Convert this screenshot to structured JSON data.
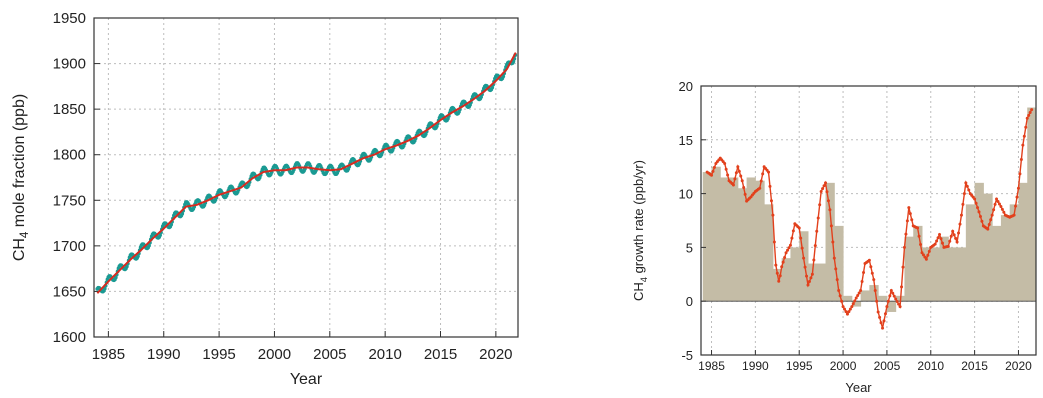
{
  "chart_data": [
    {
      "type": "line",
      "xlabel": "Year",
      "ylabel_main": "CH",
      "ylabel_sub": "4",
      "ylabel_rest": " mole fraction (ppb)",
      "xlim": [
        1983.7,
        2022.0
      ],
      "ylim": [
        1600,
        1950
      ],
      "x_ticks": [
        1985,
        1990,
        1995,
        2000,
        2005,
        2010,
        2015,
        2020
      ],
      "y_ticks": [
        1600,
        1650,
        1700,
        1750,
        1800,
        1850,
        1900,
        1950
      ],
      "grid": true,
      "colors": {
        "monthly": "#1a9a93",
        "trend": "#d62b20"
      },
      "series": [
        {
          "style": "monthly-points",
          "seasonal_amplitude": 5,
          "x": [
            1984,
            1985,
            1986,
            1987,
            1988,
            1989,
            1990,
            1991,
            1992,
            1993,
            1994,
            1995,
            1996,
            1997,
            1998,
            1999,
            2000,
            2001,
            2002,
            2003,
            2004,
            2005,
            2006,
            2007,
            2008,
            2009,
            2010,
            2011,
            2012,
            2013,
            2014,
            2015,
            2016,
            2017,
            2018,
            2019,
            2020,
            2021,
            2021.8
          ],
          "y": [
            1648,
            1661,
            1673,
            1685,
            1696,
            1708,
            1719,
            1731,
            1743,
            1745,
            1750,
            1756,
            1760,
            1764,
            1774,
            1781,
            1783,
            1783,
            1786,
            1786,
            1784,
            1783,
            1784,
            1790,
            1796,
            1800,
            1806,
            1810,
            1815,
            1821,
            1829,
            1838,
            1846,
            1853,
            1861,
            1870,
            1881,
            1894,
            1912
          ]
        },
        {
          "style": "trend-line",
          "x": [
            1984,
            1985,
            1986,
            1987,
            1988,
            1989,
            1990,
            1991,
            1992,
            1993,
            1994,
            1995,
            1996,
            1997,
            1998,
            1999,
            2000,
            2001,
            2002,
            2003,
            2004,
            2005,
            2006,
            2007,
            2008,
            2009,
            2010,
            2011,
            2012,
            2013,
            2014,
            2015,
            2016,
            2017,
            2018,
            2019,
            2020,
            2021,
            2021.8
          ],
          "y": [
            1648,
            1661,
            1673,
            1685,
            1696,
            1708,
            1719,
            1731,
            1743,
            1745,
            1750,
            1756,
            1760,
            1764,
            1774,
            1781,
            1783,
            1783,
            1786,
            1786,
            1784,
            1783,
            1784,
            1790,
            1796,
            1800,
            1806,
            1810,
            1815,
            1821,
            1829,
            1838,
            1846,
            1853,
            1861,
            1870,
            1881,
            1894,
            1912
          ]
        }
      ]
    },
    {
      "type": "bar",
      "xlabel": "Year",
      "ylabel_main": "CH",
      "ylabel_sub": "4",
      "ylabel_rest": " growth rate (ppb/yr)",
      "xlim": [
        1983.8,
        2022.0
      ],
      "ylim": [
        -5,
        20
      ],
      "x_ticks": [
        1985,
        1990,
        1995,
        2000,
        2005,
        2010,
        2015,
        2020
      ],
      "y_ticks": [
        -5,
        0,
        5,
        10,
        15,
        20
      ],
      "grid": true,
      "colors": {
        "bars": "#c4bca6",
        "line": "#e2401c"
      },
      "annual_bars": {
        "years": [
          1984,
          1985,
          1986,
          1987,
          1988,
          1989,
          1990,
          1991,
          1992,
          1993,
          1994,
          1995,
          1996,
          1997,
          1998,
          1999,
          2000,
          2001,
          2002,
          2003,
          2004,
          2005,
          2006,
          2007,
          2008,
          2009,
          2010,
          2011,
          2012,
          2013,
          2014,
          2015,
          2016,
          2017,
          2018,
          2019,
          2020,
          2021
        ],
        "values": [
          12,
          12.5,
          11.5,
          11.5,
          10.5,
          11.5,
          11.2,
          9,
          3,
          4,
          5,
          6.5,
          3.5,
          3.5,
          11,
          7,
          0.5,
          -0.5,
          1,
          1.5,
          0.5,
          -1,
          0.5,
          6,
          7,
          5,
          5,
          6,
          5,
          5,
          9,
          11,
          10,
          7,
          8,
          9,
          11,
          18
        ]
      },
      "smoothed_rate": {
        "x": [
          1984.5,
          1985,
          1985.5,
          1986,
          1986.5,
          1987,
          1987.5,
          1988,
          1988.5,
          1989,
          1989.5,
          1990,
          1990.5,
          1991,
          1991.5,
          1992,
          1992.3,
          1992.7,
          1993,
          1993.5,
          1994,
          1994.5,
          1995,
          1995.5,
          1996,
          1996.5,
          1997,
          1997.5,
          1998,
          1998.5,
          1999,
          1999.5,
          2000,
          2000.5,
          2001,
          2001.5,
          2002,
          2002.5,
          2003,
          2003.5,
          2004,
          2004.5,
          2005,
          2005.5,
          2006,
          2006.5,
          2007,
          2007.5,
          2008,
          2008.5,
          2009,
          2009.5,
          2010,
          2010.5,
          2011,
          2011.5,
          2012,
          2012.5,
          2013,
          2013.5,
          2014,
          2014.5,
          2015,
          2015.5,
          2016,
          2016.5,
          2017,
          2017.5,
          2018,
          2018.5,
          2019,
          2019.5,
          2020,
          2020.5,
          2021,
          2021.5
        ],
        "y": [
          12,
          11.7,
          12.8,
          13.3,
          12.8,
          11.2,
          10.8,
          12.5,
          11.2,
          9.3,
          9.7,
          10.2,
          10.5,
          12.5,
          12,
          8,
          3.5,
          1.7,
          3.2,
          4.5,
          5.2,
          7.2,
          6.8,
          4,
          1.5,
          2.5,
          6.5,
          10.2,
          11,
          8.5,
          4,
          1,
          -0.5,
          -1.2,
          -0.5,
          0.3,
          1,
          3.5,
          3.8,
          2,
          -1,
          -2.5,
          -0.5,
          1,
          0.2,
          -0.5,
          5,
          8.7,
          7,
          6.8,
          4.5,
          3.9,
          5,
          5.3,
          6.2,
          5,
          5.1,
          6.5,
          5.5,
          8,
          11,
          10,
          9.5,
          8.3,
          7,
          6.7,
          8,
          9.5,
          8.8,
          8,
          7.8,
          8,
          10.5,
          14.5,
          17,
          17.8
        ]
      }
    }
  ]
}
